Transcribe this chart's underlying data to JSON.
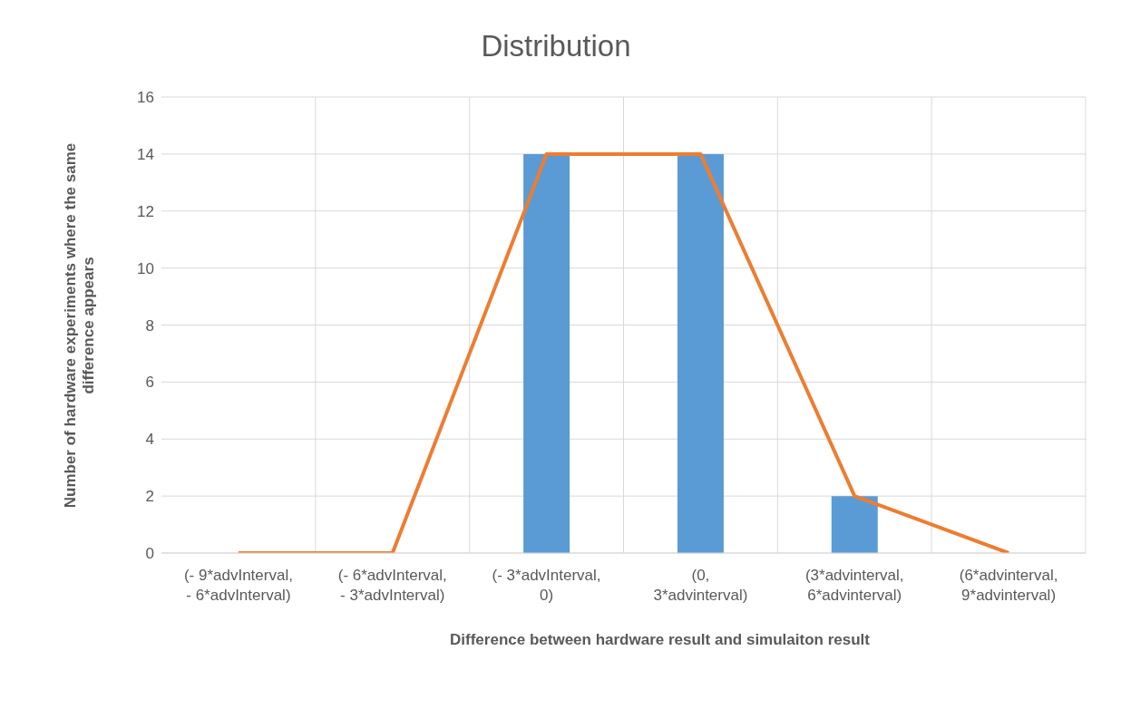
{
  "chart_data": {
    "type": "bar",
    "title": "Distribution",
    "xlabel": "Difference between hardware result and simulaiton result",
    "ylabel": "Number of hardware experiments where the same difference appears",
    "categories": [
      "(- 9*advInterval, - 6*advInterval)",
      "(- 6*advInterval, - 3*advInterval)",
      "(- 3*advInterval, 0)",
      "(0, 3*advinterval)",
      "(3*advinterval, 6*advinterval)",
      "(6*advinterval, 9*advinterval)"
    ],
    "series": [
      {
        "color": "#5b9bd5",
        "values": [
          0,
          0,
          14,
          14,
          2,
          0
        ]
      },
      {
        "type": "line",
        "color": "#ed7d31",
        "values": [
          0,
          0,
          14,
          14,
          2,
          0
        ]
      }
    ],
    "ylim": [
      0,
      16
    ],
    "yticks": [
      0,
      2,
      4,
      6,
      8,
      10,
      12,
      14,
      16
    ],
    "grid": true,
    "marker": "none",
    "line_style": "solid"
  }
}
